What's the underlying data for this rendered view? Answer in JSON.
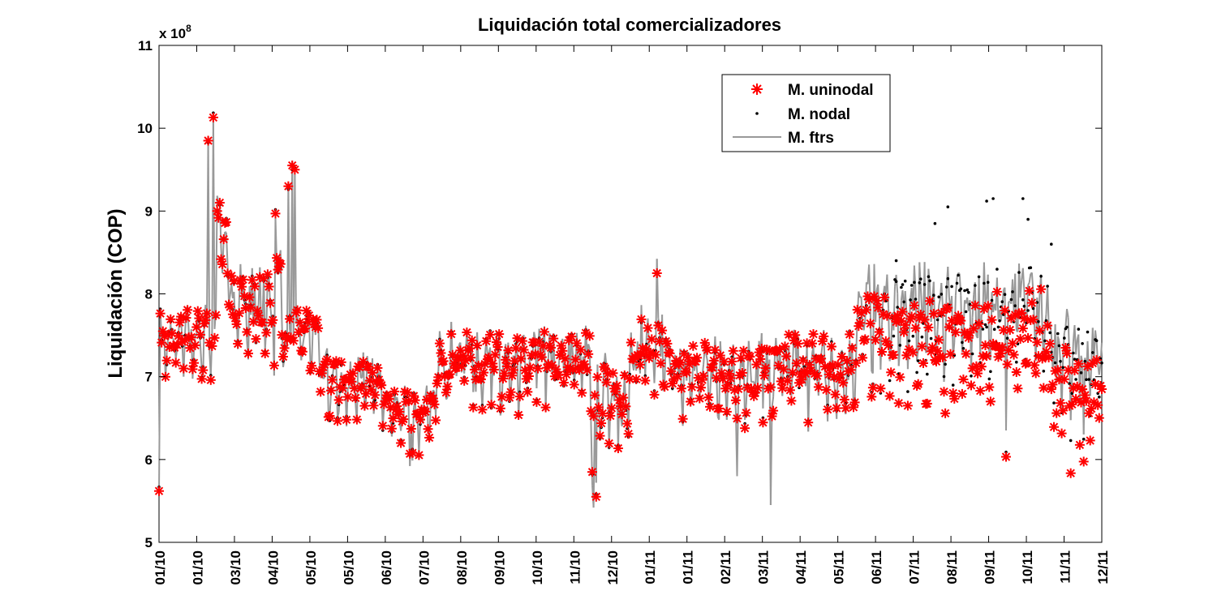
{
  "chart_data": {
    "type": "scatter",
    "title": "Liquidación total comercializadores",
    "xlabel": "",
    "ylabel": "Liquidación (COP)",
    "y_exponent_label": "x 10",
    "y_exponent": "8",
    "ylim": [
      5,
      11
    ],
    "y_ticks": [
      "5",
      "6",
      "7",
      "8",
      "9",
      "10",
      "11"
    ],
    "x_tick_labels": [
      "01/10",
      "01/10",
      "03/10",
      "04/10",
      "05/10",
      "05/10",
      "06/10",
      "07/10",
      "08/10",
      "09/10",
      "10/10",
      "11/10",
      "12/10",
      "01/11",
      "01/11",
      "02/11",
      "03/11",
      "04/11",
      "05/11",
      "06/11",
      "07/11",
      "08/11",
      "09/11",
      "10/11",
      "11/11",
      "12/11"
    ],
    "legend_position": "top-right",
    "grid": false,
    "series": [
      {
        "name": "M. uninodal",
        "marker": "asterisk",
        "color": "#ff0000"
      },
      {
        "name": "M. nodal",
        "marker": "dot",
        "color": "#000000"
      },
      {
        "name": "M. ftrs",
        "marker": "line",
        "color": "#999999"
      }
    ],
    "segments": [
      {
        "from": 0,
        "to": 25,
        "base": 7.45,
        "amp": 0.45,
        "noise": 0.25
      },
      {
        "from": 25,
        "to": 45,
        "base": 7.5,
        "amp": 0.45,
        "noise": 0.25
      },
      {
        "from": 45,
        "to": 55,
        "base": 8.4,
        "amp": 0.6,
        "noise": 0.4
      },
      {
        "from": 55,
        "to": 80,
        "base": 7.8,
        "amp": 0.5,
        "noise": 0.3
      },
      {
        "from": 80,
        "to": 95,
        "base": 7.9,
        "amp": 0.6,
        "noise": 0.4
      },
      {
        "from": 95,
        "to": 125,
        "base": 7.5,
        "amp": 0.45,
        "noise": 0.2
      },
      {
        "from": 125,
        "to": 175,
        "base": 6.9,
        "amp": 0.45,
        "noise": 0.2
      },
      {
        "from": 175,
        "to": 215,
        "base": 6.55,
        "amp": 0.4,
        "noise": 0.2
      },
      {
        "from": 215,
        "to": 300,
        "base": 7.15,
        "amp": 0.45,
        "noise": 0.3
      },
      {
        "from": 300,
        "to": 335,
        "base": 7.2,
        "amp": 0.45,
        "noise": 0.3
      },
      {
        "from": 335,
        "to": 365,
        "base": 6.7,
        "amp": 0.45,
        "noise": 0.35
      },
      {
        "from": 365,
        "to": 395,
        "base": 7.3,
        "amp": 0.45,
        "noise": 0.3
      },
      {
        "from": 395,
        "to": 480,
        "base": 7.0,
        "amp": 0.45,
        "noise": 0.3
      },
      {
        "from": 480,
        "to": 540,
        "base": 7.1,
        "amp": 0.5,
        "noise": 0.3
      },
      {
        "from": 540,
        "to": 640,
        "base": 7.5,
        "amp": 0.6,
        "noise": 0.35
      },
      {
        "from": 640,
        "to": 690,
        "base": 7.6,
        "amp": 0.55,
        "noise": 0.35
      },
      {
        "from": 690,
        "to": 730,
        "base": 7.0,
        "amp": 0.45,
        "noise": 0.3
      }
    ],
    "n_days": 730,
    "highlights": [
      {
        "day": 0,
        "value": 5.62
      },
      {
        "day": 38,
        "value": 9.85
      },
      {
        "day": 42,
        "value": 10.13
      },
      {
        "day": 45,
        "value": 9.0
      },
      {
        "day": 47,
        "value": 9.1
      },
      {
        "day": 90,
        "value": 8.97
      },
      {
        "day": 100,
        "value": 9.3
      },
      {
        "day": 103,
        "value": 9.55
      },
      {
        "day": 105,
        "value": 9.5
      },
      {
        "day": 196,
        "value": 6.08
      },
      {
        "day": 335,
        "value": 5.85
      },
      {
        "day": 338,
        "value": 5.55
      },
      {
        "day": 385,
        "value": 8.25
      },
      {
        "day": 655,
        "value": 6.05
      },
      {
        "day": 705,
        "value": 6.15
      },
      {
        "day": 715,
        "value": 6.05
      }
    ],
    "nodal_outliers": [
      {
        "day": 570,
        "value": 8.4
      },
      {
        "day": 600,
        "value": 8.85
      },
      {
        "day": 610,
        "value": 9.05
      },
      {
        "day": 640,
        "value": 9.12
      },
      {
        "day": 645,
        "value": 9.15
      },
      {
        "day": 668,
        "value": 9.15
      },
      {
        "day": 672,
        "value": 8.9
      },
      {
        "day": 690,
        "value": 8.6
      }
    ],
    "ftrs_dips": [
      {
        "day": 336,
        "value": 5.42
      },
      {
        "day": 447,
        "value": 5.8
      },
      {
        "day": 473,
        "value": 5.45
      }
    ]
  }
}
